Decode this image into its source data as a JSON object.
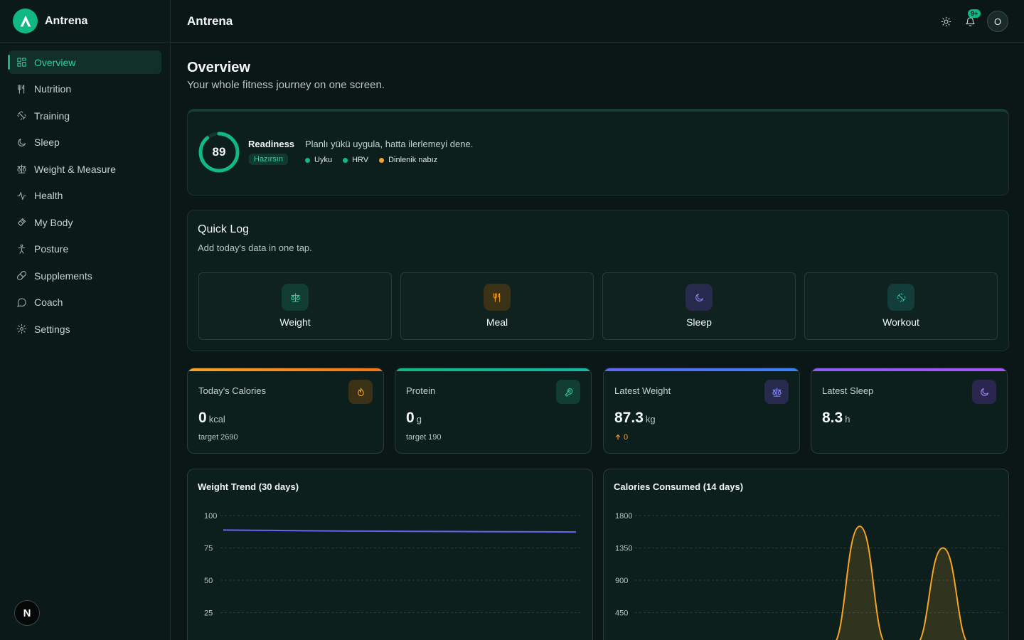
{
  "app": {
    "name": "Antrena"
  },
  "header": {
    "title": "Antrena",
    "notification_count": "9+",
    "avatar_initial": "O"
  },
  "sidebar": {
    "items": [
      {
        "label": "Overview",
        "icon": "grid-icon",
        "active": true
      },
      {
        "label": "Nutrition",
        "icon": "utensils-icon"
      },
      {
        "label": "Training",
        "icon": "dumbbell-icon"
      },
      {
        "label": "Sleep",
        "icon": "moon-icon"
      },
      {
        "label": "Weight & Measure",
        "icon": "scale-icon"
      },
      {
        "label": "Health",
        "icon": "activity-icon"
      },
      {
        "label": "My Body",
        "icon": "body-icon"
      },
      {
        "label": "Posture",
        "icon": "person-icon"
      },
      {
        "label": "Supplements",
        "icon": "pill-icon"
      },
      {
        "label": "Coach",
        "icon": "chat-icon"
      },
      {
        "label": "Settings",
        "icon": "gear-icon"
      }
    ],
    "footer_badge": "N"
  },
  "page": {
    "title": "Overview",
    "subtitle": "Your whole fitness journey on one screen."
  },
  "readiness": {
    "score": "89",
    "score_fraction": 0.89,
    "label": "Readiness",
    "status": "Hazırsın",
    "message": "Planlı yükü uygula, hatta ilerlemeyi dene.",
    "factors": [
      {
        "label": "Uyku",
        "color": "#10b981"
      },
      {
        "label": "HRV",
        "color": "#10b981"
      },
      {
        "label": "Dinlenik nabız",
        "color": "#f5a524"
      }
    ]
  },
  "quick_log": {
    "title": "Quick Log",
    "subtitle": "Add today's data in one tap.",
    "buttons": [
      {
        "label": "Weight",
        "icon": "scale-icon"
      },
      {
        "label": "Meal",
        "icon": "utensils-icon"
      },
      {
        "label": "Sleep",
        "icon": "moon-icon"
      },
      {
        "label": "Workout",
        "icon": "dumbbell-icon"
      }
    ]
  },
  "stats": {
    "calories": {
      "label": "Today's Calories",
      "value": "0",
      "unit": "kcal",
      "note": "target 2690",
      "accent": "#f5a524"
    },
    "protein": {
      "label": "Protein",
      "value": "0",
      "unit": "g",
      "note": "target 190",
      "accent": "#10b981"
    },
    "weight": {
      "label": "Latest Weight",
      "value": "87.3",
      "unit": "kg",
      "delta": "0",
      "accent": "#6366f1"
    },
    "sleep": {
      "label": "Latest Sleep",
      "value": "8.3",
      "unit": "h",
      "accent": "#8b5cf6"
    }
  },
  "charts": {
    "weight_title": "Weight Trend (30 days)",
    "calories_title": "Calories Consumed (14 days)"
  },
  "chart_data": [
    {
      "type": "line",
      "title": "Weight Trend (30 days)",
      "y_ticks": [
        "100",
        "75",
        "50",
        "25"
      ],
      "ylim": [
        0,
        100
      ],
      "series": [
        {
          "values": [
            88.8,
            88.6,
            88.4,
            88.2,
            88.0,
            87.9,
            87.8,
            87.7,
            87.6,
            87.5,
            87.4,
            87.3
          ],
          "color": "#6366f1"
        }
      ]
    },
    {
      "type": "area",
      "title": "Calories Consumed (14 days)",
      "y_ticks": [
        "1800",
        "1350",
        "900",
        "450"
      ],
      "ylim": [
        0,
        1800
      ],
      "series": [
        {
          "values": [
            0,
            0,
            0,
            0,
            0,
            0,
            0,
            0,
            1650,
            0,
            0,
            1350,
            0,
            0
          ],
          "color": "#f5a524"
        }
      ]
    }
  ]
}
